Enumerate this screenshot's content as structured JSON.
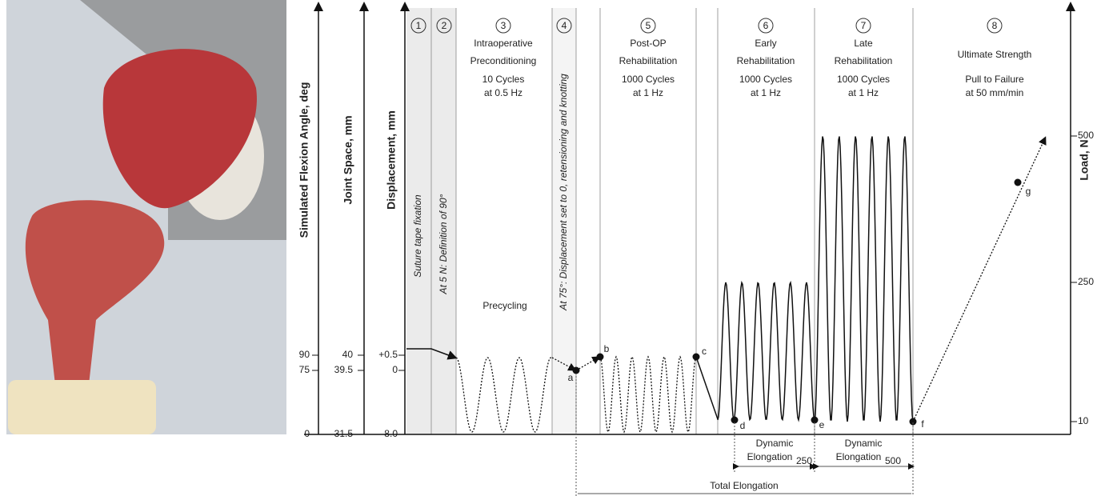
{
  "axes": [
    {
      "title": "Simulated Flexion Angle, deg",
      "ticks": [
        "90",
        "75",
        "0"
      ]
    },
    {
      "title": "Joint Space, mm",
      "ticks": [
        "40",
        "39.5",
        "31.5"
      ]
    },
    {
      "title": "Displacement, mm",
      "ticks": [
        "+0.5",
        "0",
        "-8.0"
      ]
    },
    {
      "title": "Load, N",
      "ticks": [
        "500",
        "250",
        "10"
      ]
    }
  ],
  "phases": [
    {
      "number": "1",
      "lines": [
        "Suture tape fixation"
      ]
    },
    {
      "number": "2",
      "lines": [
        "At 5 N: Definition of 90°"
      ]
    },
    {
      "number": "3",
      "lines": [
        "Intraoperative",
        "Preconditioning",
        "10 Cycles",
        "at 0.5 Hz"
      ]
    },
    {
      "number": "4",
      "lines": [
        "At 75°: Displacement set to 0, retensioning and knotting"
      ]
    },
    {
      "number": "5",
      "lines": [
        "Post-OP",
        "Rehabilitation",
        "1000 Cycles",
        "at 1 Hz"
      ]
    },
    {
      "number": "6",
      "lines": [
        "Early",
        "Rehabilitation",
        "1000 Cycles",
        "at 1 Hz"
      ]
    },
    {
      "number": "7",
      "lines": [
        "Late",
        "Rehabilitation",
        "1000 Cycles",
        "at 1 Hz"
      ]
    },
    {
      "number": "8",
      "lines": [
        "Ultimate Strength",
        "Pull to Failure",
        "at 50 mm/min"
      ]
    }
  ],
  "precycling": "Precycling",
  "points": [
    "a",
    "b",
    "c",
    "d",
    "e",
    "f",
    "g"
  ],
  "elongations": [
    {
      "label": "Dynamic",
      "sublabel": "Elongation",
      "subscript": "250"
    },
    {
      "label": "Dynamic",
      "sublabel": "Elongation",
      "subscript": "500"
    },
    {
      "label": "Total Elongation"
    }
  ]
}
